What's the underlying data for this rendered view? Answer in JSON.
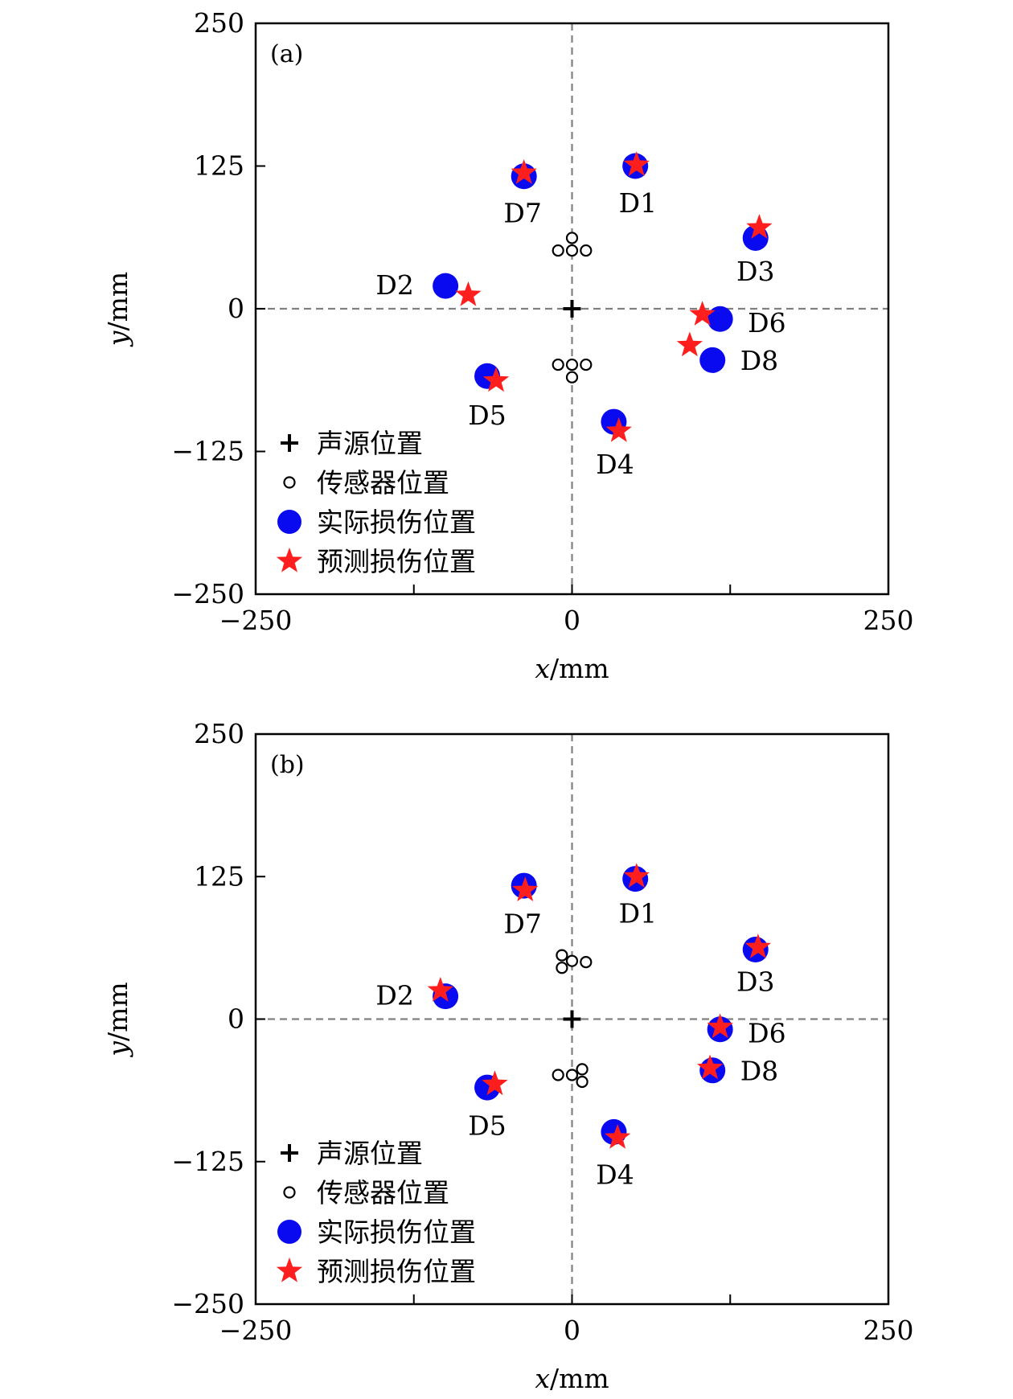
{
  "chart_data": [
    {
      "type": "scatter",
      "panel_label": "(a)",
      "xlabel_var": "x",
      "xlabel_unit": "/mm",
      "ylabel_var": "y",
      "ylabel_unit": "/mm",
      "xlim": [
        -250,
        250
      ],
      "ylim": [
        -250,
        250
      ],
      "xticks": [
        -250,
        0,
        250
      ],
      "xtick_labels": [
        "−250",
        "0",
        "250"
      ],
      "yticks": [
        -250,
        -125,
        0,
        125,
        250
      ],
      "ytick_labels": [
        "−250",
        "−125",
        "0",
        "125",
        "250"
      ],
      "minor_xticks": [
        -125,
        125
      ],
      "grid": false,
      "reference_lines": [
        {
          "axis": "x",
          "value": 0
        },
        {
          "axis": "y",
          "value": 0
        }
      ],
      "legend": {
        "position": "bottom-left",
        "entries": [
          "声源位置",
          "传感器位置",
          "实际损伤位置",
          "预测损伤位置"
        ]
      },
      "source": {
        "name": "声源位置",
        "x": 0,
        "y": 0
      },
      "sensors": {
        "name": "传感器位置",
        "points": [
          [
            0,
            62
          ],
          [
            -11,
            51
          ],
          [
            0,
            51
          ],
          [
            11,
            51
          ],
          [
            -11,
            -49
          ],
          [
            0,
            -49
          ],
          [
            11,
            -49
          ],
          [
            0,
            -60
          ]
        ]
      },
      "actual": {
        "name": "实际损伤位置",
        "points": [
          {
            "label": "D1",
            "x": 50,
            "y": 125
          },
          {
            "label": "D2",
            "x": -100,
            "y": 20
          },
          {
            "label": "D3",
            "x": 145,
            "y": 62
          },
          {
            "label": "D4",
            "x": 33,
            "y": -99
          },
          {
            "label": "D5",
            "x": -67,
            "y": -59
          },
          {
            "label": "D6",
            "x": 117,
            "y": -9
          },
          {
            "label": "D7",
            "x": -38,
            "y": 116
          },
          {
            "label": "D8",
            "x": 111,
            "y": -45
          }
        ]
      },
      "predicted": {
        "name": "预测损伤位置",
        "points": [
          {
            "label": "D1",
            "x": 51,
            "y": 126
          },
          {
            "label": "D2",
            "x": -82,
            "y": 12
          },
          {
            "label": "D3",
            "x": 148,
            "y": 71
          },
          {
            "label": "D4",
            "x": 37,
            "y": -107
          },
          {
            "label": "D5",
            "x": -60,
            "y": -63
          },
          {
            "label": "D6",
            "x": 103,
            "y": -5
          },
          {
            "label": "D7",
            "x": -38,
            "y": 119
          },
          {
            "label": "D8",
            "x": 93,
            "y": -32
          }
        ]
      },
      "point_labels": [
        {
          "text": "D1",
          "x": 52,
          "y": 93
        },
        {
          "text": "D2",
          "x": -140,
          "y": 21
        },
        {
          "text": "D3",
          "x": 145,
          "y": 33
        },
        {
          "text": "D4",
          "x": 34,
          "y": -136
        },
        {
          "text": "D5",
          "x": -67,
          "y": -93
        },
        {
          "text": "D6",
          "x": 154,
          "y": -12
        },
        {
          "text": "D7",
          "x": -39,
          "y": 84
        },
        {
          "text": "D8",
          "x": 148,
          "y": -45
        }
      ]
    },
    {
      "type": "scatter",
      "panel_label": "(b)",
      "xlabel_var": "x",
      "xlabel_unit": "/mm",
      "ylabel_var": "y",
      "ylabel_unit": "/mm",
      "xlim": [
        -250,
        250
      ],
      "ylim": [
        -250,
        250
      ],
      "xticks": [
        -250,
        0,
        250
      ],
      "xtick_labels": [
        "−250",
        "0",
        "250"
      ],
      "yticks": [
        -250,
        -125,
        0,
        125,
        250
      ],
      "ytick_labels": [
        "−250",
        "−125",
        "0",
        "125",
        "250"
      ],
      "minor_xticks": [
        -125,
        125
      ],
      "grid": false,
      "reference_lines": [
        {
          "axis": "x",
          "value": 0
        },
        {
          "axis": "y",
          "value": 0
        }
      ],
      "legend": {
        "position": "bottom-left",
        "entries": [
          "声源位置",
          "传感器位置",
          "实际损伤位置",
          "预测损伤位置"
        ]
      },
      "source": {
        "name": "声源位置",
        "x": 0,
        "y": 0
      },
      "sensors": {
        "name": "传感器位置",
        "points": [
          [
            -8,
            56
          ],
          [
            -8,
            45
          ],
          [
            0,
            51
          ],
          [
            11,
            50
          ],
          [
            -11,
            -49
          ],
          [
            0,
            -49
          ],
          [
            8,
            -44
          ],
          [
            8,
            -55
          ]
        ]
      },
      "actual": {
        "name": "实际损伤位置",
        "points": [
          {
            "label": "D1",
            "x": 50,
            "y": 123
          },
          {
            "label": "D2",
            "x": -100,
            "y": 20
          },
          {
            "label": "D3",
            "x": 145,
            "y": 61
          },
          {
            "label": "D4",
            "x": 33,
            "y": -99
          },
          {
            "label": "D5",
            "x": -67,
            "y": -60
          },
          {
            "label": "D6",
            "x": 117,
            "y": -9
          },
          {
            "label": "D7",
            "x": -38,
            "y": 117
          },
          {
            "label": "D8",
            "x": 111,
            "y": -45
          }
        ]
      },
      "predicted": {
        "name": "预测损伤位置",
        "points": [
          {
            "label": "D1",
            "x": 51,
            "y": 125
          },
          {
            "label": "D2",
            "x": -104,
            "y": 25
          },
          {
            "label": "D3",
            "x": 147,
            "y": 63
          },
          {
            "label": "D4",
            "x": 36,
            "y": -104
          },
          {
            "label": "D5",
            "x": -61,
            "y": -57
          },
          {
            "label": "D6",
            "x": 117,
            "y": -7
          },
          {
            "label": "D7",
            "x": -37,
            "y": 113
          },
          {
            "label": "D8",
            "x": 109,
            "y": -43
          }
        ]
      },
      "point_labels": [
        {
          "text": "D1",
          "x": 52,
          "y": 93
        },
        {
          "text": "D2",
          "x": -140,
          "y": 21
        },
        {
          "text": "D3",
          "x": 145,
          "y": 33
        },
        {
          "text": "D4",
          "x": 34,
          "y": -136
        },
        {
          "text": "D5",
          "x": -67,
          "y": -93
        },
        {
          "text": "D6",
          "x": 154,
          "y": -12
        },
        {
          "text": "D7",
          "x": -39,
          "y": 84
        },
        {
          "text": "D8",
          "x": 148,
          "y": -45
        }
      ]
    }
  ],
  "colors": {
    "actual": "#0a0af0",
    "predicted": "#ff1e1e",
    "reference_line": "#808080",
    "axis": "#000000"
  }
}
